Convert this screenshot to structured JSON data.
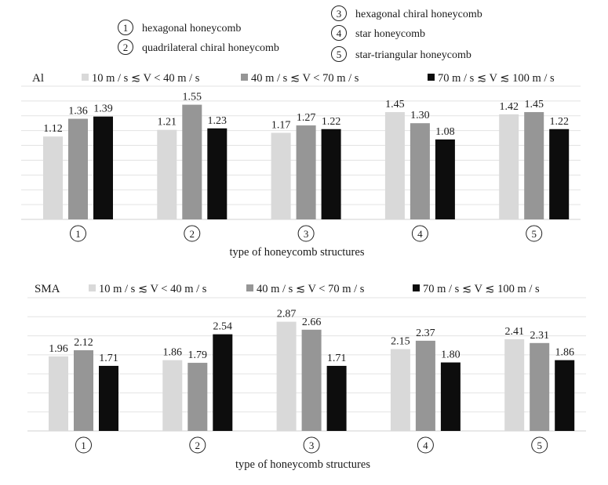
{
  "structure_legend": [
    {
      "num": "1",
      "label": "hexagonal honeycomb"
    },
    {
      "num": "2",
      "label": "quadrilateral chiral honeycomb"
    },
    {
      "num": "3",
      "label": "hexagonal chiral honeycomb"
    },
    {
      "num": "4",
      "label": "star honeycomb"
    },
    {
      "num": "5",
      "label": "star-triangular honeycomb"
    }
  ],
  "colors": {
    "series_low": "#d9d9d9",
    "series_mid": "#969696",
    "series_high": "#0d0d0d",
    "grid": "#e3e3e3"
  },
  "chart_data": [
    {
      "type": "bar",
      "title": "Al",
      "xlabel": "type of honeycomb structures",
      "ylabel": "",
      "categories": [
        "1",
        "2",
        "3",
        "4",
        "5"
      ],
      "ylim": [
        0,
        1.8
      ],
      "grid_step": 0.2,
      "grid": true,
      "legend_position": "top",
      "series": [
        {
          "name": "10 m / s ≲ V < 40 m / s",
          "values": [
            1.12,
            1.21,
            1.17,
            1.45,
            1.42
          ]
        },
        {
          "name": "40 m / s ≲ V < 70 m / s",
          "values": [
            1.36,
            1.55,
            1.27,
            1.3,
            1.45
          ]
        },
        {
          "name": "70 m / s ≲ V ≲ 100 m / s",
          "values": [
            1.39,
            1.23,
            1.22,
            1.08,
            1.22
          ]
        }
      ],
      "data_labels": [
        [
          "1.12",
          "1.21",
          "1.17",
          "1.45",
          "1.42"
        ],
        [
          "1.36",
          "1.55",
          "1.27",
          "1.30",
          "1.45"
        ],
        [
          "1.39",
          "1.23",
          "1.22",
          "1.08",
          "1.22"
        ]
      ]
    },
    {
      "type": "bar",
      "title": "SMA",
      "xlabel": "type of honeycomb structures",
      "ylabel": "",
      "categories": [
        "1",
        "2",
        "3",
        "4",
        "5"
      ],
      "ylim": [
        0,
        3.5
      ],
      "grid_step": 0.5,
      "grid": true,
      "legend_position": "top",
      "series": [
        {
          "name": "10 m / s ≲ V < 40 m / s",
          "values": [
            1.96,
            1.86,
            2.87,
            2.15,
            2.41
          ]
        },
        {
          "name": "40 m / s ≲ V < 70 m / s",
          "values": [
            2.12,
            1.79,
            2.66,
            2.37,
            2.31
          ]
        },
        {
          "name": "70 m / s ≲ V ≲ 100 m / s",
          "values": [
            1.71,
            2.54,
            1.71,
            1.8,
            1.86
          ]
        }
      ],
      "data_labels": [
        [
          "1.96",
          "1.86",
          "2.87",
          "2.15",
          "2.41"
        ],
        [
          "2.12",
          "1.79",
          "2.66",
          "2.37",
          "2.31"
        ],
        [
          "1.71",
          "2.54",
          "1.71",
          "1.80",
          "1.86"
        ]
      ]
    }
  ]
}
